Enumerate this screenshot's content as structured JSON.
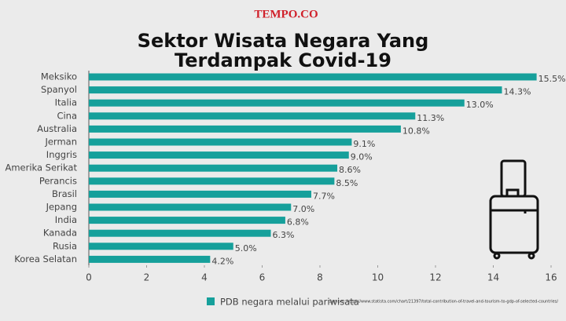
{
  "brand": "TEMPO.CO",
  "source": "Sumber: https://www.statista.com/chart/21397/total-contribution-of-travel-and-tourism-to-gdp-of-selected-countries/",
  "chart_data": {
    "type": "bar",
    "orientation": "horizontal",
    "title": [
      "Sektor Wisata Negara Yang",
      "Terdampak Covid-19"
    ],
    "categories": [
      "Meksiko",
      "Spanyol",
      "Italia",
      "Cina",
      "Australia",
      "Jerman",
      "Inggris",
      "Amerika Serikat",
      "Perancis",
      "Brasil",
      "Jepang",
      "India",
      "Kanada",
      "Rusia",
      "Korea Selatan"
    ],
    "series": [
      {
        "name": "PDB negara melalui pariwisata",
        "color": "#16a09b",
        "values": [
          15.5,
          14.3,
          13.0,
          11.3,
          10.8,
          9.1,
          9.0,
          8.6,
          8.5,
          7.7,
          7.0,
          6.8,
          6.3,
          5.0,
          4.2
        ],
        "value_labels": [
          "15.5%",
          "14.3%",
          "13.0%",
          "11.3%",
          "10.8%",
          "9.1%",
          "9.0%",
          "8.6%",
          "8.5%",
          "7.7%",
          "7.0%",
          "6.8%",
          "6.3%",
          "5.0%",
          "4.2%"
        ]
      }
    ],
    "xlim": [
      0,
      16
    ],
    "xticks": [
      0,
      2,
      4,
      6,
      8,
      10,
      12,
      14,
      16
    ]
  }
}
